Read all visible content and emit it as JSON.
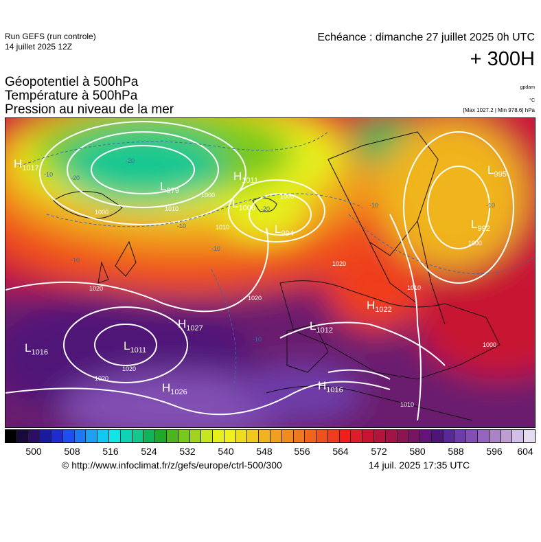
{
  "header": {
    "run_label": "Run GEFS (run controle)",
    "run_date": "14 juillet 2025 12Z",
    "echeance": "Echéance : dimanche 27 juillet 2025 0h UTC",
    "leadtime": "+ 300H"
  },
  "variables": {
    "v1": "Géopotentiel à 500hPa",
    "v2": "Température à 500hPa",
    "v3": "Pression au niveau de la mer"
  },
  "units": {
    "gpdam": "gpdam",
    "celsius": "°C",
    "maxmin": "[Max 1027.2 | Min 978.6] hPa"
  },
  "pressure_systems": [
    {
      "type": "H",
      "value": "1017"
    },
    {
      "type": "L",
      "value": "979"
    },
    {
      "type": "H",
      "value": "1011"
    },
    {
      "type": "L",
      "value": "1006"
    },
    {
      "type": "L",
      "value": "994"
    },
    {
      "type": "L",
      "value": "995"
    },
    {
      "type": "L",
      "value": "992"
    },
    {
      "type": "H",
      "value": "1027"
    },
    {
      "type": "L",
      "value": "1016"
    },
    {
      "type": "L",
      "value": "1011"
    },
    {
      "type": "L",
      "value": "1012"
    },
    {
      "type": "H",
      "value": "1022"
    },
    {
      "type": "H",
      "value": "1026"
    },
    {
      "type": "H",
      "value": "1016"
    }
  ],
  "isobar_labels": [
    "1000",
    "1000",
    "1010",
    "1010",
    "1020",
    "1020",
    "1020",
    "1020",
    "1020",
    "1000",
    "1000",
    "1010",
    "1010",
    "1000"
  ],
  "temperature_labels": [
    "-10",
    "-20",
    "-20",
    "-10",
    "-20",
    "-10",
    "-10",
    "-10",
    "-10",
    "-10"
  ],
  "colorbar": {
    "colors": [
      "#000000",
      "#1a0a3c",
      "#2a0f64",
      "#1a1aa0",
      "#1e2bd0",
      "#1f4ef0",
      "#1e78f4",
      "#1ea0f0",
      "#10c8f0",
      "#10e6e6",
      "#10d2b4",
      "#12c890",
      "#10b45a",
      "#1fa82a",
      "#4bb41e",
      "#78c81e",
      "#a0d21e",
      "#c8e61e",
      "#e6f01e",
      "#f0f01e",
      "#f0dc1e",
      "#f0c81e",
      "#f0b41e",
      "#f0a01e",
      "#f08c1e",
      "#f0781e",
      "#f0641e",
      "#f0501e",
      "#f03c1e",
      "#f01e1e",
      "#dc1e28",
      "#c81432",
      "#b4143c",
      "#a01446",
      "#8c1450",
      "#781464",
      "#641478",
      "#501478",
      "#5a2896",
      "#6e3caa",
      "#8250b4",
      "#9664be",
      "#aa82c8",
      "#be9ed2",
      "#d2bee6",
      "#e6dcf0"
    ],
    "ticks": [
      "500",
      "508",
      "516",
      "524",
      "532",
      "540",
      "548",
      "556",
      "564",
      "572",
      "580",
      "588",
      "596",
      "604"
    ]
  },
  "footer": {
    "copyright": "© http://www.infoclimat.fr/z/gefs/europe/ctrl-500/300",
    "generated": "14 juil. 2025 17:35 UTC"
  }
}
